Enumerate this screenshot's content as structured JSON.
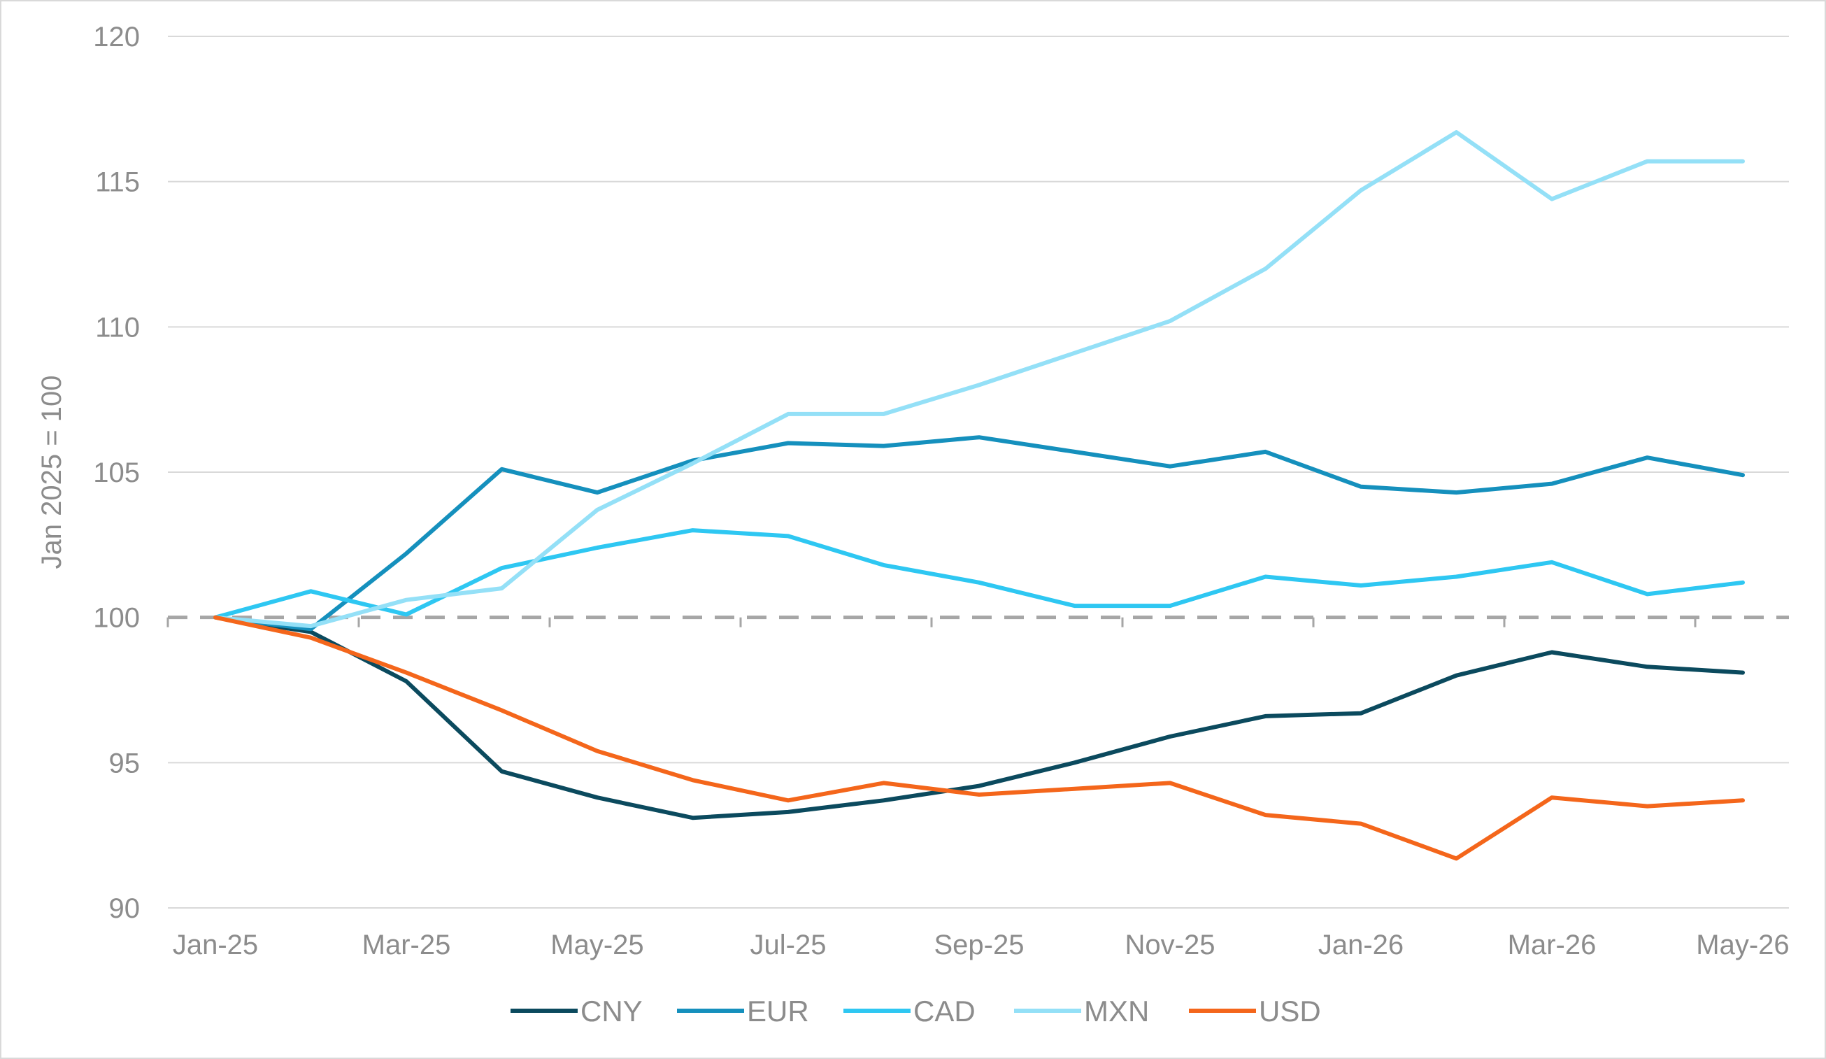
{
  "chart_data": {
    "type": "line",
    "title": "",
    "xlabel": "",
    "ylabel": "Jan 2025 = 100",
    "x": [
      "Jan-25",
      "Feb-25",
      "Mar-25",
      "Apr-25",
      "May-25",
      "Jun-25",
      "Jul-25",
      "Aug-25",
      "Sep-25",
      "Oct-25",
      "Nov-25",
      "Dec-25",
      "Jan-26",
      "Feb-26",
      "Mar-26",
      "Apr-26",
      "May-26"
    ],
    "x_tick_labels": [
      "Jan-25",
      "Mar-25",
      "May-25",
      "Jul-25",
      "Sep-25",
      "Nov-25",
      "Jan-26",
      "Mar-26",
      "May-26"
    ],
    "y_ticks": [
      90,
      95,
      100,
      105,
      110,
      115,
      120
    ],
    "ylim": [
      90,
      120
    ],
    "grid": true,
    "reference_line": {
      "y": 100,
      "style": "dashed",
      "color": "#a6a6a6"
    },
    "legend_position": "bottom",
    "series": [
      {
        "name": "CNY",
        "color": "#0b4a5e",
        "values": [
          100,
          99.5,
          97.8,
          94.7,
          93.8,
          93.1,
          93.3,
          93.7,
          94.2,
          95.0,
          95.9,
          96.6,
          96.7,
          98.0,
          98.8,
          98.3,
          98.1
        ]
      },
      {
        "name": "EUR",
        "color": "#1590bd",
        "values": [
          100,
          99.6,
          102.2,
          105.1,
          104.3,
          105.4,
          106.0,
          105.9,
          106.2,
          105.7,
          105.2,
          105.7,
          104.5,
          104.3,
          104.6,
          105.5,
          104.9
        ]
      },
      {
        "name": "CAD",
        "color": "#2ec7f2",
        "values": [
          100,
          100.9,
          100.1,
          101.7,
          102.4,
          103.0,
          102.8,
          101.8,
          101.2,
          100.4,
          100.4,
          101.4,
          101.1,
          101.4,
          101.9,
          100.8,
          101.2
        ]
      },
      {
        "name": "MXN",
        "color": "#94e0f7",
        "values": [
          100,
          99.7,
          100.6,
          101.0,
          103.7,
          105.3,
          107.0,
          107.0,
          108.0,
          109.1,
          110.2,
          112.0,
          114.7,
          116.7,
          114.4,
          115.7,
          115.7
        ]
      },
      {
        "name": "USD",
        "color": "#f4661b",
        "values": [
          100,
          99.3,
          98.1,
          96.8,
          95.4,
          94.4,
          93.7,
          94.3,
          93.9,
          94.1,
          94.3,
          93.2,
          92.9,
          91.7,
          93.8,
          93.5,
          93.7
        ]
      }
    ]
  }
}
